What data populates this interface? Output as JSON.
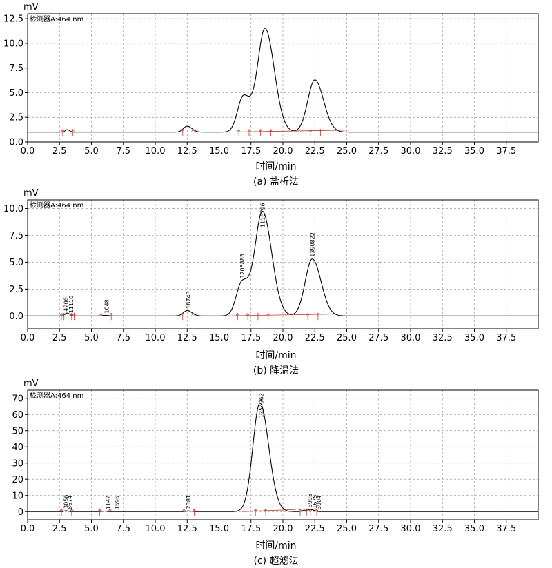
{
  "chart_data": [
    {
      "type": "line",
      "title": "(a) 盐析法",
      "detector_label": "检测器A:464 nm",
      "ylabel": "mV",
      "xlabel": "时间/min",
      "xlim": [
        0,
        40
      ],
      "ylim": [
        0,
        13
      ],
      "x_ticks": [
        0,
        2.5,
        5,
        7.5,
        10,
        12.5,
        15,
        17.5,
        20,
        22.5,
        25,
        27.5,
        30,
        32.5,
        35,
        37.5
      ],
      "x_tick_labels": [
        "0.0",
        "2.5",
        "5.0",
        "7.5",
        "10.0",
        "12.5",
        "15.0",
        "17.5",
        "20.0",
        "22.5",
        "25.0",
        "27.5",
        "30.0",
        "32.5",
        "35.0",
        "37.5"
      ],
      "y_ticks": [
        0,
        2.5,
        5,
        7.5,
        10,
        12.5
      ],
      "y_tick_labels": [
        "0.0",
        "2.5",
        "5.0",
        "7.5",
        "10.0",
        "12.5"
      ],
      "grid": true,
      "baseline": 1.0,
      "series": [
        {
          "peaks": [
            {
              "t": 3.1,
              "h": 0.25,
              "w": 0.15
            },
            {
              "t": 12.5,
              "h": 0.6,
              "w": 0.3
            },
            {
              "t": 16.9,
              "h": 3.6,
              "w": 0.45
            },
            {
              "t": 18.6,
              "h": 10.5,
              "w": 0.58
            },
            {
              "t": 22.5,
              "h": 5.3,
              "w": 0.55
            }
          ]
        }
      ],
      "peak_labels": []
    },
    {
      "type": "line",
      "title": "(b) 降温法",
      "detector_label": "检测器A:464 nm",
      "ylabel": "mV",
      "xlabel": "时间/min",
      "xlim": [
        0,
        40
      ],
      "ylim": [
        -1.2,
        10.8
      ],
      "x_ticks": [
        0,
        2.5,
        5,
        7.5,
        10,
        12.5,
        15,
        17.5,
        20,
        22.5,
        25,
        27.5,
        30,
        32.5,
        35,
        37.5
      ],
      "x_tick_labels": [
        "0.0",
        "2.5",
        "5.0",
        "7.5",
        "10.0",
        "12.5",
        "15.0",
        "17.5",
        "20.0",
        "22.5",
        "25.0",
        "27.5",
        "30.0",
        "32.5",
        "35.0",
        "37.5"
      ],
      "y_ticks": [
        0,
        2.5,
        5,
        7.5,
        10
      ],
      "y_tick_labels": [
        "0.0",
        "2.5",
        "5.0",
        "7.5",
        "10.0"
      ],
      "grid": true,
      "baseline": 0.0,
      "series": [
        {
          "peaks": [
            {
              "t": 3.0,
              "h": 0.2,
              "w": 0.12
            },
            {
              "t": 3.2,
              "h": 0.15,
              "w": 0.12
            },
            {
              "t": 6.1,
              "h": 0.05,
              "w": 0.2
            },
            {
              "t": 12.5,
              "h": 0.5,
              "w": 0.3
            },
            {
              "t": 16.8,
              "h": 3.1,
              "w": 0.45
            },
            {
              "t": 18.4,
              "h": 9.7,
              "w": 0.58
            },
            {
              "t": 22.3,
              "h": 5.3,
              "w": 0.55
            }
          ]
        }
      ],
      "peak_labels": [
        {
          "t": 3.0,
          "text": "4206"
        },
        {
          "t": 3.4,
          "text": "11110"
        },
        {
          "t": 6.2,
          "text": "1048"
        },
        {
          "t": 12.6,
          "text": "18743"
        },
        {
          "t": 16.8,
          "text": "1205885"
        },
        {
          "t": 18.4,
          "text": "1116796"
        },
        {
          "t": 22.3,
          "text": "1390822"
        }
      ]
    },
    {
      "type": "line",
      "title": "(c) 超滤法",
      "detector_label": "检测器A:464 nm",
      "ylabel": "mV",
      "xlabel": "时间/min",
      "xlim": [
        0,
        40
      ],
      "ylim": [
        -5,
        75
      ],
      "x_ticks": [
        0,
        2.5,
        5,
        7.5,
        10,
        12.5,
        15,
        17.5,
        20,
        22.5,
        25,
        27.5,
        30,
        32.5,
        35,
        37.5
      ],
      "x_tick_labels": [
        "0.0",
        "2.5",
        "5.0",
        "7.5",
        "10.0",
        "12.5",
        "15.0",
        "17.5",
        "20.0",
        "22.5",
        "25.0",
        "27.5",
        "30.0",
        "32.5",
        "35.0",
        "37.5"
      ],
      "y_ticks": [
        0,
        10,
        20,
        30,
        40,
        50,
        60,
        70
      ],
      "y_tick_labels": [
        "0",
        "10",
        "20",
        "30",
        "40",
        "50",
        "60",
        "70"
      ],
      "grid": true,
      "baseline": 0.0,
      "series": [
        {
          "peaks": [
            {
              "t": 3.0,
              "h": 0.6,
              "w": 0.12
            },
            {
              "t": 6.0,
              "h": 0.3,
              "w": 0.15
            },
            {
              "t": 12.6,
              "h": 0.4,
              "w": 0.2
            },
            {
              "t": 18.2,
              "h": 67,
              "w": 0.55
            },
            {
              "t": 21.7,
              "h": 0.8,
              "w": 0.2
            },
            {
              "t": 22.2,
              "h": 1.2,
              "w": 0.2
            }
          ]
        }
      ],
      "peak_labels": [
        {
          "t": 3.0,
          "text": "3056"
        },
        {
          "t": 3.3,
          "text": "8674"
        },
        {
          "t": 6.3,
          "text": "1142"
        },
        {
          "t": 7.0,
          "text": "1595"
        },
        {
          "t": 12.6,
          "text": "2381"
        },
        {
          "t": 18.3,
          "text": "1354962"
        },
        {
          "t": 22.1,
          "text": "3995"
        },
        {
          "t": 22.5,
          "text": "1675"
        },
        {
          "t": 22.8,
          "text": "3904"
        }
      ]
    }
  ]
}
